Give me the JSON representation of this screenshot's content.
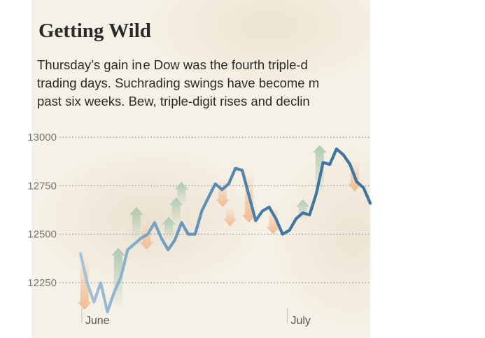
{
  "chart_data": {
    "type": "line",
    "title": "Getting Wild",
    "subtitle_lines": [
      "Thursday’s gain in e Dow was the fourth triple-d",
      "trading days. Suchrading swings have become m",
      "past six weeks. Bew, triple-digit rises and declin"
    ],
    "ylim": [
      12120,
      13080
    ],
    "yticks": [
      {
        "value": 13000,
        "label": "13000"
      },
      {
        "value": 12750,
        "label": "12750"
      },
      {
        "value": 12500,
        "label": "12500"
      },
      {
        "value": 12250,
        "label": "12250"
      }
    ],
    "xlim": [
      0,
      43
    ],
    "xticks": [
      {
        "x": 0.5,
        "label": "June"
      },
      {
        "x": 31,
        "label": "July"
      }
    ],
    "grid": true,
    "series": [
      {
        "x": [
          0,
          1,
          2,
          3,
          4,
          5,
          6,
          7,
          8,
          9,
          10,
          11,
          12,
          13,
          14,
          15,
          16,
          17,
          18,
          19,
          20,
          21,
          22,
          23,
          24,
          25,
          26,
          27,
          28,
          29,
          30,
          31,
          32,
          33,
          34,
          35,
          36,
          37,
          38,
          39,
          40,
          41,
          42,
          43
        ],
        "y": [
          12400,
          12250,
          12150,
          12250,
          12100,
          12200,
          12280,
          12420,
          12450,
          12480,
          12500,
          12560,
          12480,
          12420,
          12470,
          12560,
          12500,
          12500,
          12620,
          12690,
          12760,
          12730,
          12760,
          12840,
          12830,
          12700,
          12570,
          12620,
          12640,
          12580,
          12500,
          12520,
          12580,
          12610,
          12600,
          12710,
          12870,
          12860,
          12940,
          12910,
          12860,
          12770,
          12740,
          12660
        ]
      }
    ],
    "arrows": [
      {
        "x": 0.6,
        "from": 12400,
        "to": 12110,
        "dir": "down"
      },
      {
        "x": 5.6,
        "from": 12110,
        "to": 12430,
        "dir": "up"
      },
      {
        "x": 8.3,
        "from": 12470,
        "to": 12640,
        "dir": "up"
      },
      {
        "x": 9.8,
        "from": 12560,
        "to": 12420,
        "dir": "down"
      },
      {
        "x": 13.1,
        "from": 12470,
        "to": 12590,
        "dir": "up"
      },
      {
        "x": 14.2,
        "from": 12560,
        "to": 12690,
        "dir": "up"
      },
      {
        "x": 15.0,
        "from": 12650,
        "to": 12770,
        "dir": "up"
      },
      {
        "x": 21.1,
        "from": 12780,
        "to": 12640,
        "dir": "down"
      },
      {
        "x": 22.2,
        "from": 12640,
        "to": 12540,
        "dir": "down"
      },
      {
        "x": 25.0,
        "from": 12830,
        "to": 12560,
        "dir": "down"
      },
      {
        "x": 28.6,
        "from": 12640,
        "to": 12500,
        "dir": "down"
      },
      {
        "x": 33.0,
        "from": 12570,
        "to": 12680,
        "dir": "up"
      },
      {
        "x": 35.5,
        "from": 12700,
        "to": 12960,
        "dir": "up"
      },
      {
        "x": 40.7,
        "from": 12880,
        "to": 12720,
        "dir": "down"
      }
    ],
    "colors": {
      "line": "#3d76a4",
      "up_arrow": "#a9c9ae",
      "down_arrow": "#f3b88c",
      "grid": "#999999",
      "tick_label": "#777777",
      "month_label": "#555555"
    }
  }
}
